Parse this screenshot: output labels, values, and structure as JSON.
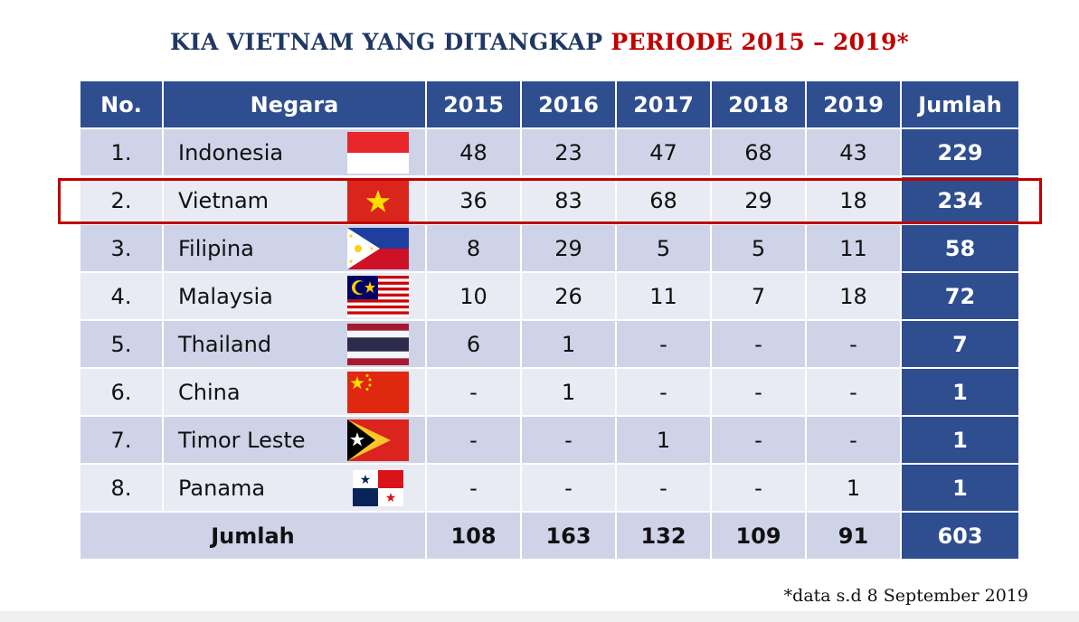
{
  "title": {
    "part1": "KIA VIETNAM YANG DITANGKAP ",
    "part2": "PERIODE 2015 – 2019*"
  },
  "table": {
    "headers": {
      "no": "No.",
      "negara": "Negara",
      "y2015": "2015",
      "y2016": "2016",
      "y2017": "2017",
      "y2018": "2018",
      "y2019": "2019",
      "jumlah": "Jumlah"
    },
    "rows": [
      {
        "no": "1.",
        "negara": "Indonesia",
        "flag": "indonesia-flag-icon",
        "y2015": "48",
        "y2016": "23",
        "y2017": "47",
        "y2018": "68",
        "y2019": "43",
        "jumlah": "229"
      },
      {
        "no": "2.",
        "negara": "Vietnam",
        "flag": "vietnam-flag-icon",
        "y2015": "36",
        "y2016": "83",
        "y2017": "68",
        "y2018": "29",
        "y2019": "18",
        "jumlah": "234"
      },
      {
        "no": "3.",
        "negara": "Filipina",
        "flag": "philippines-flag-icon",
        "y2015": "8",
        "y2016": "29",
        "y2017": "5",
        "y2018": "5",
        "y2019": "11",
        "jumlah": "58"
      },
      {
        "no": "4.",
        "negara": "Malaysia",
        "flag": "malaysia-flag-icon",
        "y2015": "10",
        "y2016": "26",
        "y2017": "11",
        "y2018": "7",
        "y2019": "18",
        "jumlah": "72"
      },
      {
        "no": "5.",
        "negara": "Thailand",
        "flag": "thailand-flag-icon",
        "y2015": "6",
        "y2016": "1",
        "y2017": "-",
        "y2018": "-",
        "y2019": "-",
        "jumlah": "7"
      },
      {
        "no": "6.",
        "negara": "China",
        "flag": "china-flag-icon",
        "y2015": "-",
        "y2016": "1",
        "y2017": "-",
        "y2018": "-",
        "y2019": "-",
        "jumlah": "1"
      },
      {
        "no": "7.",
        "negara": "Timor Leste",
        "flag": "timor-leste-flag-icon",
        "y2015": "-",
        "y2016": "-",
        "y2017": "1",
        "y2018": "-",
        "y2019": "-",
        "jumlah": "1"
      },
      {
        "no": "8.",
        "negara": "Panama",
        "flag": "panama-flag-icon",
        "y2015": "-",
        "y2016": "-",
        "y2017": "-",
        "y2018": "-",
        "y2019": "1",
        "jumlah": "1"
      }
    ],
    "footer": {
      "label": "Jumlah",
      "y2015": "108",
      "y2016": "163",
      "y2017": "132",
      "y2018": "109",
      "y2019": "91",
      "jumlah": "603"
    }
  },
  "highlighted_row": "Vietnam",
  "footnote": "*data s.d 8 September 2019",
  "colors": {
    "header_bg": "#2f4e8f",
    "row_dark": "#cfd3e8",
    "row_light": "#e8eaf4",
    "title_blue": "#1f3864",
    "title_red": "#c00000",
    "highlight": "#c00000"
  }
}
